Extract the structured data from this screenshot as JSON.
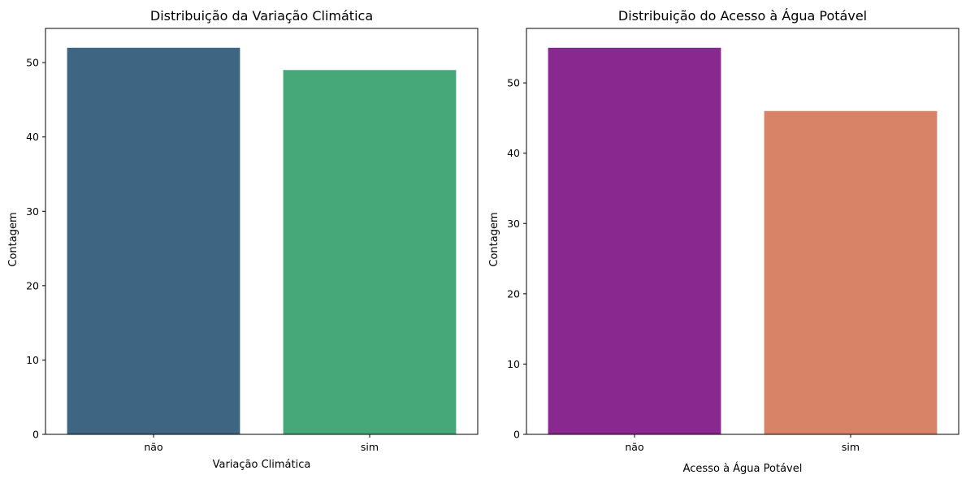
{
  "chart_data": [
    {
      "type": "bar",
      "title": "Distribuição da Variação Climática",
      "xlabel": "Variação Climática",
      "ylabel": "Contagem",
      "categories": [
        "não",
        "sim"
      ],
      "values": [
        52,
        49
      ],
      "colors": [
        "#3e6683",
        "#46a878"
      ],
      "ylim": [
        0,
        54.6
      ],
      "yticks": [
        0,
        10,
        20,
        30,
        40,
        50
      ],
      "grid": false
    },
    {
      "type": "bar",
      "title": "Distribuição do Acesso à Água Potável",
      "xlabel": "Acesso à Água Potável",
      "ylabel": "Contagem",
      "categories": [
        "não",
        "sim"
      ],
      "values": [
        55,
        46
      ],
      "colors": [
        "#89288f",
        "#d88367"
      ],
      "ylim": [
        0,
        57.75
      ],
      "yticks": [
        0,
        10,
        20,
        30,
        40,
        50
      ],
      "grid": false
    }
  ]
}
